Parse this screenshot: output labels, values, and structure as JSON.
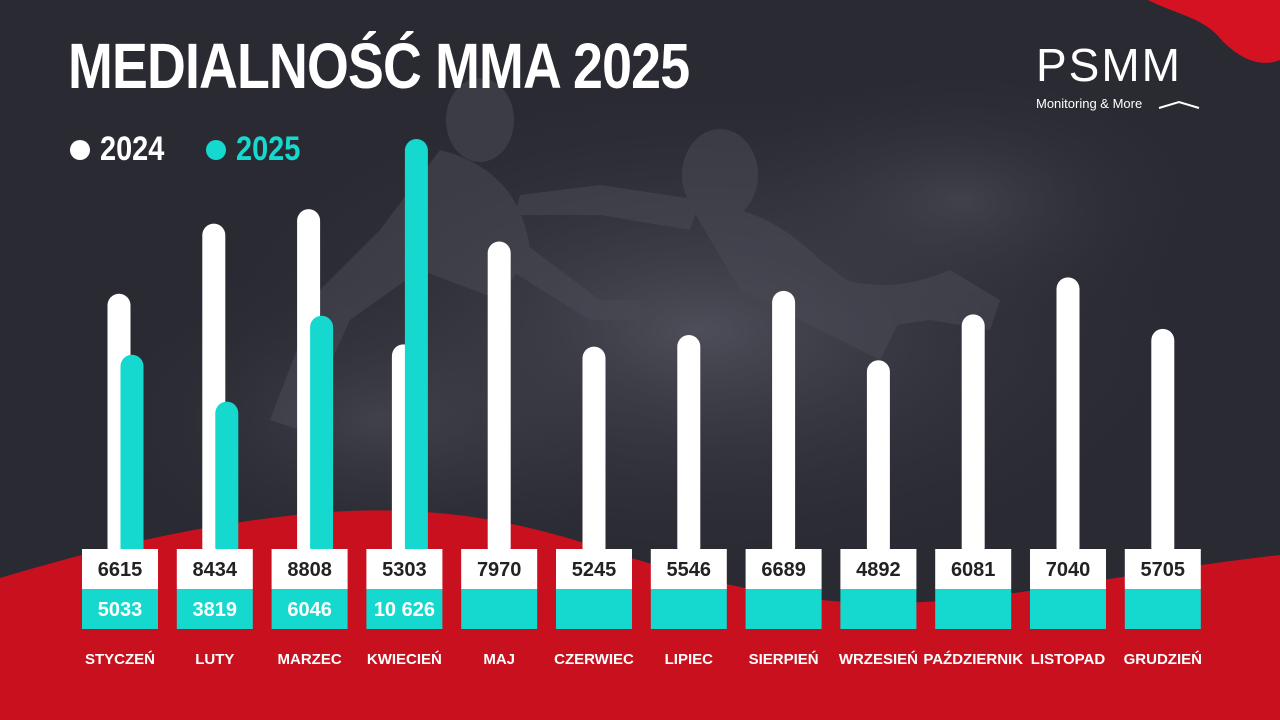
{
  "header": {
    "title": "MEDIALNOŚĆ MMA 2025"
  },
  "logo": {
    "name": "PSMM",
    "tagline": "Monitoring & More"
  },
  "colors": {
    "background": "#2c2c36",
    "bar_2024": "#ffffff",
    "bar_2025": "#15d9cf",
    "accent_red": "#c8101e",
    "label_text": "#ffffff"
  },
  "legend": [
    {
      "label": "2024",
      "color": "#ffffff"
    },
    {
      "label": "2025",
      "color": "#15d9cf"
    }
  ],
  "chart_data": {
    "type": "bar",
    "title": "MEDIALNOŚĆ MMA 2025",
    "xlabel": "",
    "ylabel": "",
    "ylim": [
      0,
      11000
    ],
    "grid": false,
    "legend_position": "top-left",
    "categories": [
      "STYCZEŃ",
      "LUTY",
      "MARZEC",
      "KWIECIEŃ",
      "MAJ",
      "CZERWIEC",
      "LIPIEC",
      "SIERPIEŃ",
      "WRZESIEŃ",
      "PAŹDZIERNIK",
      "LISTOPAD",
      "GRUDZIEŃ"
    ],
    "series": [
      {
        "name": "2024",
        "values": [
          6615,
          8434,
          8808,
          5303,
          7970,
          5245,
          5546,
          6689,
          4892,
          6081,
          7040,
          5705
        ],
        "labels": [
          "6615",
          "8434",
          "8808",
          "5303",
          "7970",
          "5245",
          "5546",
          "6689",
          "4892",
          "6081",
          "7040",
          "5705"
        ]
      },
      {
        "name": "2025",
        "values": [
          5033,
          3819,
          6046,
          10626,
          null,
          null,
          null,
          null,
          null,
          null,
          null,
          null
        ],
        "labels": [
          "5033",
          "3819",
          "6046",
          "10 626",
          "",
          "",
          "",
          "",
          "",
          "",
          "",
          ""
        ]
      }
    ]
  }
}
